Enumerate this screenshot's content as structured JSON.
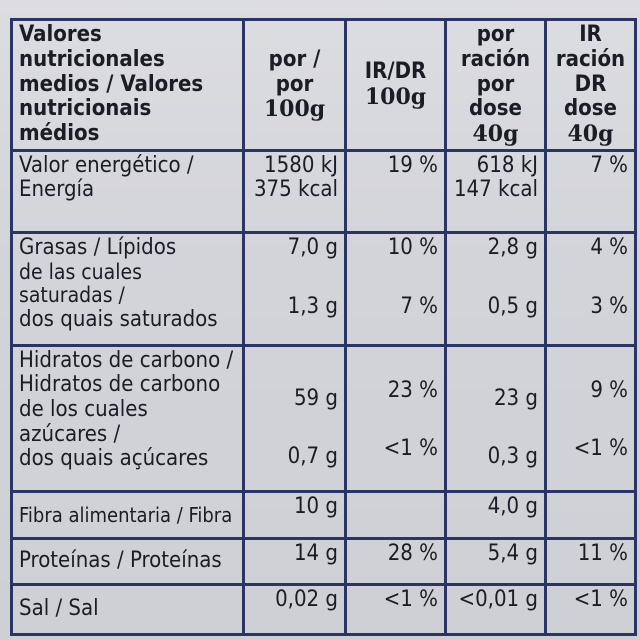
{
  "header": {
    "col0": [
      "Valores nutricionales",
      "medios / Valores",
      "nutricionais médios"
    ],
    "col1": {
      "top": "por / por",
      "sub": "100g"
    },
    "col2": {
      "top": "IR/DR",
      "sub": "100g"
    },
    "col3": {
      "top1": "por ración",
      "top2": "por dose",
      "sub": "40g"
    },
    "col4": {
      "top1": "IR ración",
      "top2": "DR dose",
      "sub": "40g"
    }
  },
  "rows": [
    {
      "label": [
        "Valor energético /",
        "Energía"
      ],
      "per100": [
        "1580 kJ",
        "375 kcal"
      ],
      "ir100": "19 %",
      "per40": [
        "618 kJ",
        "147 kcal"
      ],
      "ir40": "7 %"
    },
    {
      "label": [
        "Grasas / Lípidos"
      ],
      "per100": "7,0 g",
      "ir100": "10 %",
      "per40": "2,8 g",
      "ir40": "4 %",
      "sublabel": [
        "de las cuales saturadas /",
        "dos quais saturados"
      ],
      "sub_per100": "1,3 g",
      "sub_ir100": "7 %",
      "sub_per40": "0,5 g",
      "sub_ir40": "3 %"
    },
    {
      "label": [
        "Hidratos de carbono /",
        "Hidratos de carbono"
      ],
      "per100": "59 g",
      "ir100": "23 %",
      "per40": "23 g",
      "ir40": "9 %",
      "sublabel": [
        "de los cuales azúcares /",
        "dos quais açúcares"
      ],
      "sub_per100": "0,7 g",
      "sub_ir100": "<1 %",
      "sub_per40": "0,3 g",
      "sub_ir40": "<1 %"
    },
    {
      "label": [
        "Fibra alimentaria / Fibra"
      ],
      "per100": "10 g",
      "ir100": "",
      "per40": "4,0 g",
      "ir40": ""
    },
    {
      "label": [
        "Proteínas / Proteínas"
      ],
      "per100": "14 g",
      "ir100": "28 %",
      "per40": "5,4 g",
      "ir40": "11 %"
    },
    {
      "label": [
        "Sal / Sal"
      ],
      "per100": "0,02 g",
      "ir100": "<1 %",
      "per40": "<0,01 g",
      "ir40": "<1 %"
    }
  ]
}
